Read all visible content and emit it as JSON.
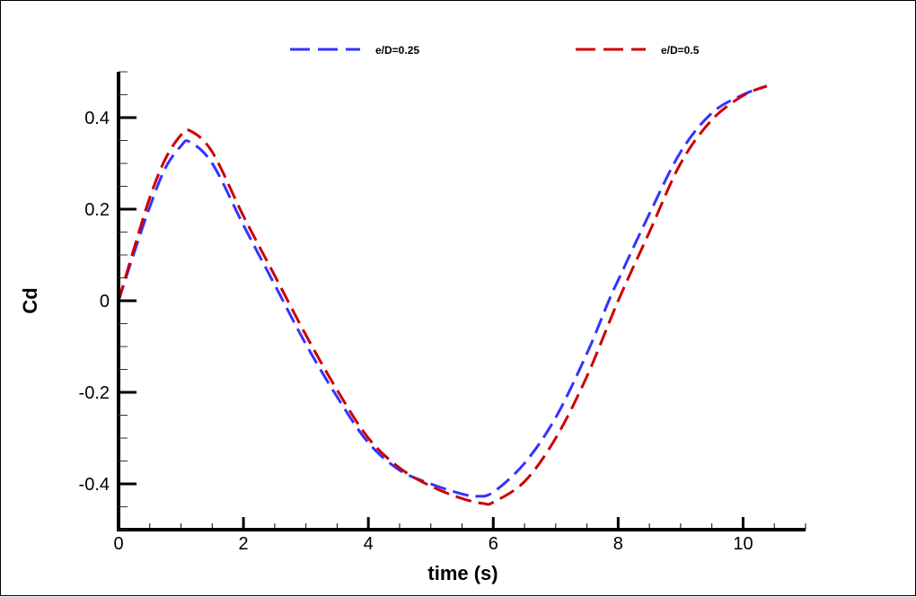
{
  "chart_data": {
    "type": "line",
    "title": "",
    "xlabel": "time (s)",
    "ylabel": "Cd",
    "xlim": [
      0,
      11
    ],
    "ylim": [
      -0.5,
      0.5
    ],
    "xticks": [
      0,
      2,
      4,
      6,
      8,
      10
    ],
    "xtick_labels": [
      "0",
      "2",
      "4",
      "6",
      "8",
      "10"
    ],
    "xminor_step": 0.5,
    "yticks": [
      -0.4,
      -0.2,
      0,
      0.2,
      0.4
    ],
    "ytick_labels": [
      "-0.4",
      "-0.2",
      "0",
      "0.2",
      "0.4"
    ],
    "yminor_step": 0.05,
    "grid": false,
    "legend_position": "top",
    "series": [
      {
        "name": "e/D=0.25",
        "color": "#3333ff",
        "style": "dashed",
        "x": [
          0,
          0.25,
          0.5,
          0.75,
          1.0,
          1.14,
          1.5,
          2.0,
          2.5,
          3.0,
          3.5,
          4.0,
          4.5,
          5.0,
          5.5,
          5.75,
          6.0,
          6.5,
          7.0,
          7.5,
          7.85,
          8.0,
          8.5,
          9.0,
          9.5,
          10.0,
          10.38
        ],
        "y": [
          0,
          0.105,
          0.205,
          0.29,
          0.338,
          0.347,
          0.3,
          0.165,
          0.035,
          -0.095,
          -0.21,
          -0.31,
          -0.37,
          -0.4,
          -0.422,
          -0.427,
          -0.418,
          -0.355,
          -0.255,
          -0.115,
          0.0,
          0.045,
          0.19,
          0.325,
          0.41,
          0.45,
          0.469
        ]
      },
      {
        "name": "e/D=0.5",
        "color": "#cc0000",
        "style": "dashed",
        "x": [
          0,
          0.25,
          0.5,
          0.75,
          1.0,
          1.15,
          1.5,
          2.0,
          2.5,
          3.0,
          3.5,
          4.0,
          4.5,
          5.0,
          5.5,
          5.85,
          6.0,
          6.5,
          7.0,
          7.5,
          8.0,
          8.5,
          9.0,
          9.5,
          10.0,
          10.38
        ],
        "y": [
          0,
          0.115,
          0.225,
          0.31,
          0.362,
          0.371,
          0.325,
          0.185,
          0.055,
          -0.075,
          -0.195,
          -0.3,
          -0.365,
          -0.405,
          -0.432,
          -0.443,
          -0.44,
          -0.395,
          -0.3,
          -0.165,
          0.0,
          0.15,
          0.3,
          0.395,
          0.448,
          0.469
        ]
      }
    ]
  }
}
